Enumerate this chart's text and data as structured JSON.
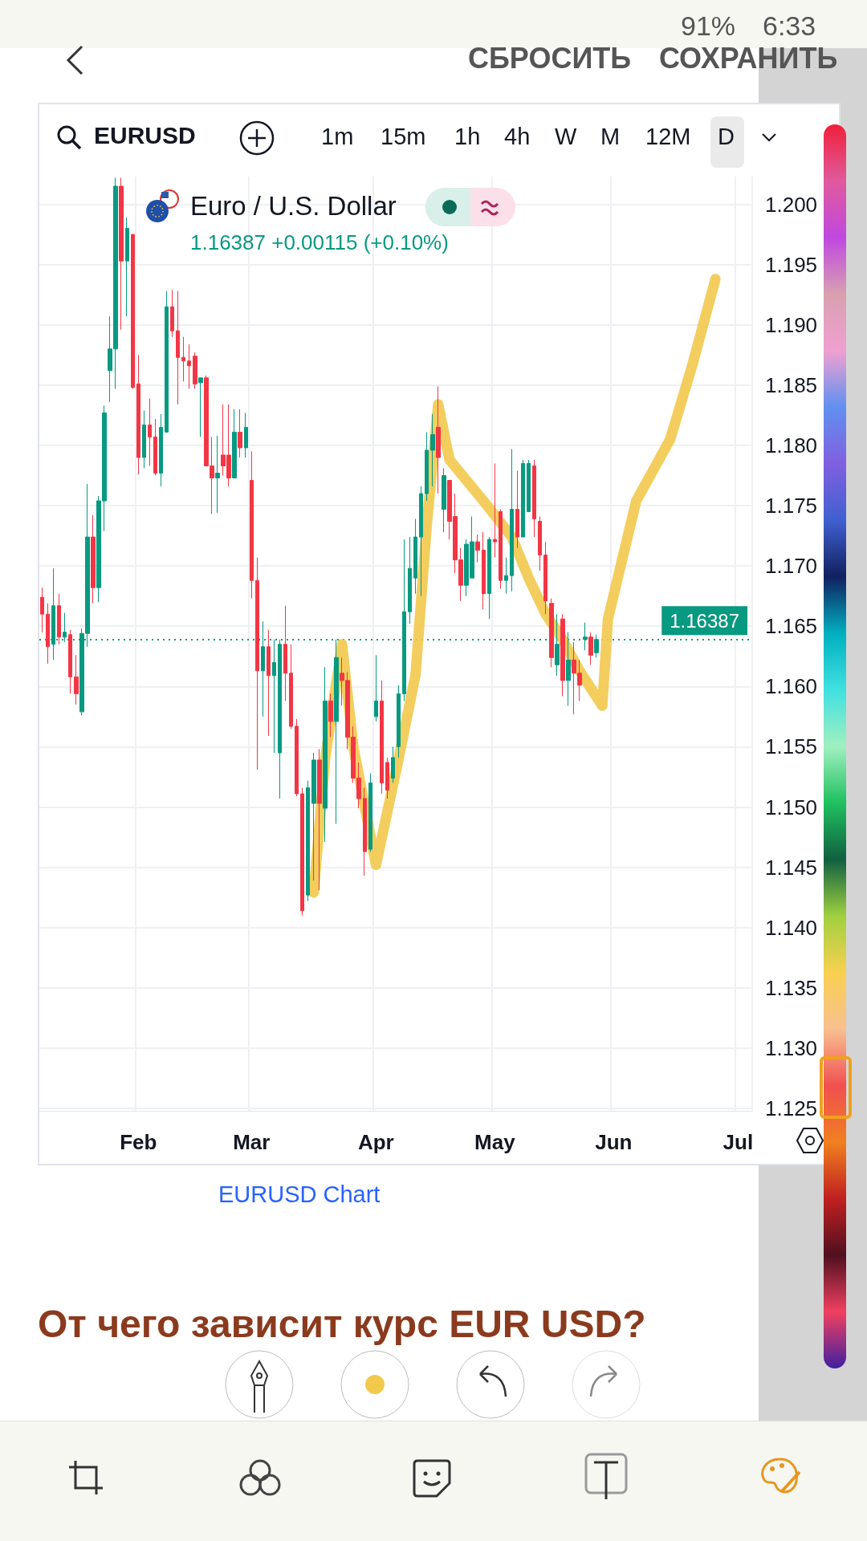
{
  "chart_data": {
    "type": "candlestick",
    "title": "Euro / U.S. Dollar",
    "subtitle": "1.16387 +0.00115 (+0.10%)",
    "categories": [
      null,
      null,
      null,
      null,
      null,
      null,
      null,
      null,
      null,
      null,
      null,
      null,
      null,
      null,
      null,
      null,
      null,
      "Feb",
      null,
      null,
      null,
      null,
      null,
      null,
      null,
      null,
      null,
      null,
      null,
      null,
      null,
      null,
      null,
      null,
      null,
      null,
      null,
      "Mar",
      null,
      null,
      null,
      null,
      null,
      null,
      null,
      null,
      null,
      null,
      null,
      null,
      null,
      null,
      null,
      null,
      null,
      null,
      null,
      null,
      null,
      "Apr",
      null,
      null,
      null,
      null,
      null,
      null,
      null,
      null,
      null,
      null,
      null,
      null,
      null,
      null,
      null,
      null,
      null,
      null,
      null,
      null,
      "May",
      null,
      null,
      null,
      null,
      null,
      null,
      null,
      null,
      null,
      null,
      null,
      null,
      null,
      null,
      null,
      null,
      null,
      null,
      null,
      null,
      "Jun",
      null,
      null,
      null,
      null,
      null,
      null,
      null,
      null,
      null,
      null,
      null,
      null,
      null,
      null,
      null,
      null,
      null,
      null,
      null,
      null,
      null,
      "Jul",
      null,
      null
    ],
    "ohlc": [
      [
        1.1674,
        1.1682,
        1.1645,
        1.166
      ],
      [
        1.166,
        1.1669,
        1.1619,
        1.1633
      ],
      [
        1.1635,
        1.1698,
        1.1622,
        1.1667
      ],
      [
        1.1667,
        1.1677,
        1.1635,
        1.1641
      ],
      [
        1.1641,
        1.1661,
        1.1637,
        1.1645
      ],
      [
        1.1643,
        1.1647,
        1.1594,
        1.1608
      ],
      [
        1.1608,
        1.1626,
        1.1585,
        1.1594
      ],
      [
        1.1579,
        1.1648,
        1.1576,
        1.1644
      ],
      [
        1.1644,
        1.1768,
        1.1633,
        1.1724
      ],
      [
        1.1724,
        1.1742,
        1.1669,
        1.1682
      ],
      [
        1.1682,
        1.1758,
        1.167,
        1.1754
      ],
      [
        1.1754,
        1.1833,
        1.1729,
        1.1827
      ],
      [
        1.1862,
        1.1907,
        1.1836,
        1.188
      ],
      [
        1.188,
        1.2022,
        1.1847,
        1.2015
      ],
      [
        1.2015,
        1.2022,
        1.1896,
        1.1953
      ],
      [
        1.1953,
        1.1989,
        1.1907,
        1.198
      ],
      [
        1.1975,
        1.1975,
        1.1847,
        1.1848
      ],
      [
        1.1851,
        1.1875,
        1.1776,
        1.179
      ],
      [
        1.179,
        1.1829,
        1.1781,
        1.1817
      ],
      [
        1.1817,
        1.1839,
        1.1783,
        1.1807
      ],
      [
        1.1807,
        1.1822,
        1.1775,
        1.1777
      ],
      [
        1.1777,
        1.1826,
        1.1766,
        1.1815
      ],
      [
        1.1811,
        1.1928,
        1.1811,
        1.1915
      ],
      [
        1.1915,
        1.1929,
        1.189,
        1.1895
      ],
      [
        1.1895,
        1.1928,
        1.1834,
        1.1873
      ],
      [
        1.1873,
        1.189,
        1.1853,
        1.187
      ],
      [
        1.187,
        1.1884,
        1.1847,
        1.1866
      ],
      [
        1.1874,
        1.1877,
        1.1847,
        1.1851
      ],
      [
        1.1852,
        1.1856,
        1.1807,
        1.1856
      ],
      [
        1.1856,
        1.1858,
        1.1783,
        1.1783
      ],
      [
        1.1783,
        1.1807,
        1.1743,
        1.1773
      ],
      [
        1.1773,
        1.1808,
        1.1744,
        1.1777
      ],
      [
        1.1792,
        1.1834,
        1.1775,
        1.1783
      ],
      [
        1.1792,
        1.1834,
        1.1766,
        1.1773
      ],
      [
        1.1773,
        1.183,
        1.1773,
        1.1811
      ],
      [
        1.1811,
        1.183,
        1.179,
        1.1798
      ],
      [
        1.1798,
        1.1827,
        1.179,
        1.1815
      ],
      [
        1.1771,
        1.1795,
        1.1673,
        1.1688
      ],
      [
        1.1688,
        1.1707,
        1.1531,
        1.1613
      ],
      [
        1.1613,
        1.1654,
        1.1575,
        1.1633
      ],
      [
        1.1633,
        1.1647,
        1.1559,
        1.1609
      ],
      [
        1.1609,
        1.1639,
        1.1545,
        1.162
      ],
      [
        1.1545,
        1.1639,
        1.1507,
        1.1635
      ],
      [
        1.1635,
        1.1667,
        1.1588,
        1.1611
      ],
      [
        1.1611,
        1.1635,
        1.1565,
        1.1567
      ],
      [
        1.1567,
        1.1573,
        1.1509,
        1.1511
      ],
      [
        1.1511,
        1.1516,
        1.141,
        1.1414
      ],
      [
        1.1427,
        1.1522,
        1.1422,
        1.1516
      ],
      [
        1.1503,
        1.1545,
        1.1439,
        1.1539
      ],
      [
        1.1539,
        1.1548,
        1.1431,
        1.1503
      ],
      [
        1.1499,
        1.1616,
        1.1471,
        1.1588
      ],
      [
        1.1588,
        1.1594,
        1.1558,
        1.1571
      ],
      [
        1.1571,
        1.1639,
        1.1486,
        1.1624
      ],
      [
        1.1611,
        1.1624,
        1.1584,
        1.1605
      ],
      [
        1.1605,
        1.1612,
        1.1548,
        1.1558
      ],
      [
        1.1558,
        1.1567,
        1.152,
        1.1524
      ],
      [
        1.1524,
        1.1537,
        1.1499,
        1.1507
      ],
      [
        1.1507,
        1.1516,
        1.1443,
        1.1463
      ],
      [
        1.1465,
        1.1528,
        1.1463,
        1.152
      ],
      [
        1.1575,
        1.1626,
        1.1571,
        1.1588
      ],
      [
        1.1588,
        1.1605,
        1.1511,
        1.152
      ],
      [
        1.1537,
        1.1541,
        1.1507,
        1.1514
      ],
      [
        1.1524,
        1.155,
        1.152,
        1.1541
      ],
      [
        1.155,
        1.1601,
        1.1541,
        1.1594
      ],
      [
        1.1594,
        1.1722,
        1.1588,
        1.1662
      ],
      [
        1.1662,
        1.1724,
        1.1652,
        1.1698
      ],
      [
        1.169,
        1.1739,
        1.1677,
        1.1724
      ],
      [
        1.1724,
        1.1766,
        1.1675,
        1.176
      ],
      [
        1.176,
        1.1811,
        1.1754,
        1.1796
      ],
      [
        1.1796,
        1.1826,
        1.1766,
        1.1809
      ],
      [
        1.1815,
        1.1849,
        1.176,
        1.179
      ],
      [
        1.1747,
        1.1781,
        1.1728,
        1.1775
      ],
      [
        1.1771,
        1.1771,
        1.1722,
        1.1737
      ],
      [
        1.1741,
        1.176,
        1.1694,
        1.1705
      ],
      [
        1.1705,
        1.1715,
        1.1671,
        1.1684
      ],
      [
        1.1684,
        1.1722,
        1.1675,
        1.1718
      ],
      [
        1.169,
        1.1741,
        1.169,
        1.172
      ],
      [
        1.172,
        1.1726,
        1.1703,
        1.1713
      ],
      [
        1.1713,
        1.1728,
        1.1664,
        1.1677
      ],
      [
        1.1677,
        1.1724,
        1.1656,
        1.1722
      ],
      [
        1.1722,
        1.1785,
        1.1707,
        1.172
      ],
      [
        1.1745,
        1.1747,
        1.1681,
        1.1688
      ],
      [
        1.1688,
        1.1707,
        1.1677,
        1.1692
      ],
      [
        1.1692,
        1.1797,
        1.1679,
        1.1747
      ],
      [
        1.1747,
        1.1779,
        1.1715,
        1.1724
      ],
      [
        1.1724,
        1.1788,
        1.1724,
        1.1785
      ],
      [
        1.1745,
        1.1788,
        1.1745,
        1.1785
      ],
      [
        1.1783,
        1.1788,
        1.1724,
        1.1739
      ],
      [
        1.1737,
        1.1741,
        1.1696,
        1.1709
      ],
      [
        1.1709,
        1.172,
        1.166,
        1.1671
      ],
      [
        1.1669,
        1.1673,
        1.1616,
        1.1624
      ],
      [
        1.1618,
        1.166,
        1.1609,
        1.1635
      ],
      [
        1.1656,
        1.166,
        1.1592,
        1.1605
      ],
      [
        1.1605,
        1.1645,
        1.1584,
        1.1622
      ],
      [
        1.1622,
        1.1637,
        1.1577,
        1.1611
      ],
      [
        1.1611,
        1.1622,
        1.1588,
        1.1601
      ],
      [
        1.1639,
        1.1653,
        1.163,
        1.1641
      ],
      [
        1.1641,
        1.1645,
        1.1618,
        1.1626
      ],
      [
        1.1628,
        1.1643,
        1.1624,
        1.1639
      ],
      null,
      null,
      null,
      null,
      null,
      null,
      null,
      null,
      null,
      null,
      null,
      null,
      null,
      null,
      null,
      null,
      null,
      null,
      null,
      null,
      null,
      null,
      null,
      null,
      null,
      null,
      null
    ],
    "series": [
      {
        "type": "line",
        "color": "#f2c94c",
        "values": [
          null,
          null,
          null,
          null,
          null,
          null,
          null,
          null,
          null,
          null,
          null,
          null,
          null,
          null,
          null,
          null,
          null,
          null,
          null,
          null,
          null,
          null,
          null,
          null,
          null,
          null,
          null,
          null,
          null,
          null,
          null,
          null,
          null,
          null,
          null,
          null,
          null,
          null,
          null,
          null,
          null,
          null,
          null,
          null,
          null,
          null,
          null,
          null,
          1.1429,
          null,
          1.154,
          null,
          null,
          1.1635,
          null,
          1.155,
          null,
          null,
          null,
          1.1452,
          null,
          null,
          null,
          1.154,
          null,
          null,
          1.161,
          null,
          1.1735,
          null,
          1.1834,
          null,
          1.1788,
          null,
          null,
          null,
          null,
          null,
          1.1754,
          null,
          null,
          null,
          null,
          1.1724,
          null,
          null,
          1.169,
          null,
          null,
          1.166,
          null,
          null,
          1.1639,
          null,
          null,
          1.1613,
          null,
          null,
          null,
          1.1584,
          1.1656,
          null,
          null,
          null,
          null,
          1.1754,
          null,
          null,
          null,
          null,
          null,
          1.1805,
          null,
          null,
          null,
          1.1868,
          null,
          null,
          null,
          1.1938,
          null,
          null,
          null,
          null,
          null,
          null
        ]
      }
    ],
    "ylim": [
      1.1248,
      1.2023
    ],
    "yticks": [
      {
        "value": 1.2,
        "label": "1.200"
      },
      {
        "value": 1.195,
        "label": "1.195"
      },
      {
        "value": 1.19,
        "label": "1.190"
      },
      {
        "value": 1.185,
        "label": "1.185"
      },
      {
        "value": 1.18,
        "label": "1.180"
      },
      {
        "value": 1.175,
        "label": "1.175"
      },
      {
        "value": 1.17,
        "label": "1.170"
      },
      {
        "value": 1.165,
        "label": "1.165"
      },
      {
        "value": 1.16,
        "label": "1.160"
      },
      {
        "value": 1.155,
        "label": "1.155"
      },
      {
        "value": 1.15,
        "label": "1.150"
      },
      {
        "value": 1.145,
        "label": "1.145"
      },
      {
        "value": 1.14,
        "label": "1.140"
      },
      {
        "value": 1.135,
        "label": "1.135"
      },
      {
        "value": 1.13,
        "label": "1.130"
      },
      {
        "value": 1.125,
        "label": "1.125"
      }
    ],
    "grid": true,
    "ref_lines": [
      {
        "axis": "y",
        "value": 1.16387,
        "label": "1.16387",
        "color": "#089981",
        "line_style": "dotted"
      }
    ],
    "annotations": [
      "EURUSD",
      "1m",
      "15m",
      "1h",
      "4h",
      "W",
      "M",
      "12M",
      "D",
      "СБРОСИТЬ",
      "СОХРАНИТЬ",
      "91%",
      "6:33",
      "EURUSD Chart",
      "От чего зависит курс EUR USD?"
    ]
  }
}
